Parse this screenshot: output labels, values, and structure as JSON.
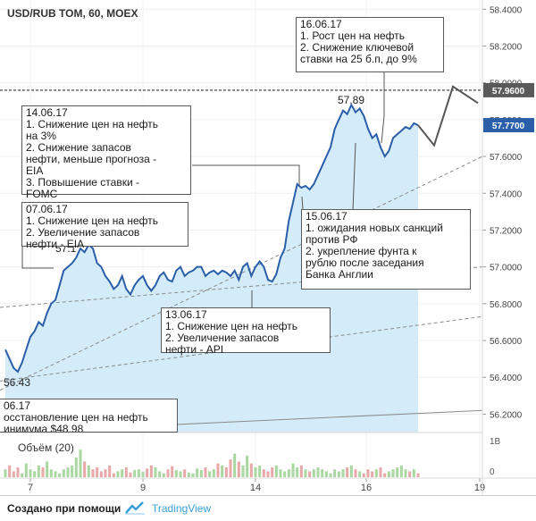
{
  "chart_data": {
    "type": "line",
    "title": "USD/RUB TOM, 60, MOEX",
    "ylim": [
      56.1,
      58.45
    ],
    "y_ticks": [
      "58.4000",
      "58.2000",
      "58.0000",
      "57.8000",
      "57.6000",
      "57.4000",
      "57.2000",
      "57.0000",
      "56.8000",
      "56.6000",
      "56.4000",
      "56.2000"
    ],
    "x_ticks": [
      "7",
      "9",
      "14",
      "16",
      "19"
    ],
    "price_labels": {
      "last": "57.7700",
      "level": "57.9600"
    },
    "level_line": 57.96,
    "peaks": {
      "high_label": "57.89",
      "low_label": "56.43",
      "mid_label": "57.1"
    },
    "series": [
      {
        "values": [
          56.55,
          56.5,
          56.45,
          56.43,
          56.48,
          56.55,
          56.62,
          56.65,
          56.7,
          56.68,
          56.75,
          56.8,
          56.82,
          56.9,
          56.98,
          57.0,
          57.02,
          57.05,
          57.1,
          57.08,
          57.12,
          57.1,
          57.02,
          57.0,
          56.95,
          56.92,
          56.88,
          56.9,
          56.95,
          56.88,
          56.85,
          56.9,
          56.93,
          56.95,
          56.9,
          56.87,
          56.9,
          56.95,
          56.97,
          56.93,
          56.92,
          56.98,
          57.0,
          56.95,
          56.97,
          56.98,
          57.0,
          57.0,
          56.95,
          56.97,
          56.98,
          56.96,
          56.98,
          56.97,
          56.95,
          56.98,
          56.93,
          57.0,
          57.02,
          56.95,
          57.0,
          57.03,
          57.0,
          56.93,
          56.92,
          56.96,
          57.05,
          57.1,
          57.25,
          57.35,
          57.45,
          57.43,
          57.44,
          57.42,
          57.45,
          57.5,
          57.55,
          57.6,
          57.65,
          57.75,
          57.8,
          57.85,
          57.83,
          57.88,
          57.84,
          57.86,
          57.82,
          57.75,
          57.7,
          57.72,
          57.65,
          57.6,
          57.63,
          57.7,
          57.72,
          57.74,
          57.76,
          57.75,
          57.78,
          57.77
        ]
      }
    ],
    "forecast": [
      57.77,
      57.66,
      57.98,
      57.89
    ],
    "trend_lines": [
      {
        "from": [
          0,
          56.78
        ],
        "to": [
          1,
          57.0
        ],
        "style": "dashed"
      },
      {
        "from": [
          0,
          56.33
        ],
        "to": [
          1,
          57.6
        ],
        "style": "dashed"
      },
      {
        "from": [
          0,
          56.38
        ],
        "to": [
          1,
          56.73
        ],
        "style": "dashed"
      },
      {
        "from": [
          0,
          56.1
        ],
        "to": [
          1,
          56.22
        ],
        "style": "solid"
      }
    ],
    "volume": {
      "label": "Объём (20)",
      "axis_labels": [
        "1B",
        "0"
      ],
      "values": [
        0.2,
        0.3,
        0.15,
        0.25,
        0.1,
        0.35,
        0.2,
        0.15,
        0.3,
        0.25,
        0.4,
        0.2,
        0.15,
        0.1,
        0.2,
        0.25,
        0.3,
        0.5,
        0.7,
        0.4,
        0.3,
        0.2,
        0.25,
        0.15,
        0.2,
        0.3,
        0.1,
        0.15,
        0.2,
        0.25,
        0.12,
        0.18,
        0.2,
        0.14,
        0.22,
        0.3,
        0.25,
        0.15,
        0.1,
        0.2,
        0.28,
        0.18,
        0.15,
        0.2,
        0.12,
        0.1,
        0.22,
        0.18,
        0.25,
        0.15,
        0.2,
        0.35,
        0.3,
        0.25,
        0.45,
        0.6,
        0.4,
        0.3,
        0.55,
        0.35,
        0.25,
        0.3,
        0.2,
        0.15,
        0.25,
        0.3,
        0.2,
        0.15,
        0.2,
        0.35,
        0.25,
        0.3,
        0.2,
        0.15,
        0.2,
        0.25,
        0.2,
        0.15,
        0.1,
        0.2,
        0.15,
        0.2,
        0.25,
        0.3,
        0.2,
        0.15,
        0.1,
        0.2,
        0.15,
        0.2,
        0.25,
        0.1,
        0.15,
        0.2,
        0.25,
        0.3,
        0.2,
        0.15,
        0.2,
        0.1
      ]
    }
  },
  "annotations": [
    {
      "id": "ann-16-06",
      "text": "16.06.17\n1. Рост цен на нефть\n2. Снижение ключевой\nставки на 25 б.п, до 9%"
    },
    {
      "id": "ann-14-06",
      "text": "14.06.17\n1. Снижение цен на нефть\nна 3%\n2. Снижение запасов\nнефти, меньше прогноза -\nEIA\n3. Повышение ставки -\nFOMC"
    },
    {
      "id": "ann-07-06",
      "text": "07.06.17\n1. Снижение цен на нефть\n2. Увеличение запасов\nнефти - EIA"
    },
    {
      "id": "ann-15-06",
      "text": "15.06.17\n1. ожидания новых санкций\nпротив РФ\n2. укрепление фунта к\nрублю после заседания\nБанка Англии"
    },
    {
      "id": "ann-13-06",
      "text": "13.06.17\n1. Снижение цен на нефть\n2. Увеличение запасов\nнефти - API"
    },
    {
      "id": "ann-06-06",
      "text": "06.17\nосстановление цен на нефть\nинимума $48.98"
    }
  ],
  "footer": {
    "created_with": "Создано при помощи",
    "brand": "TradingView",
    "brand_icon": "tradingview-cloud-icon"
  },
  "colors": {
    "line": "#2a5ea8",
    "fill": "#d4ecf9",
    "forecast": "#555555",
    "volume_up": "#e8a8a8",
    "volume_down": "#a8d8a0",
    "level": "#5a5a5a",
    "last_badge": "#2a5ea8"
  }
}
